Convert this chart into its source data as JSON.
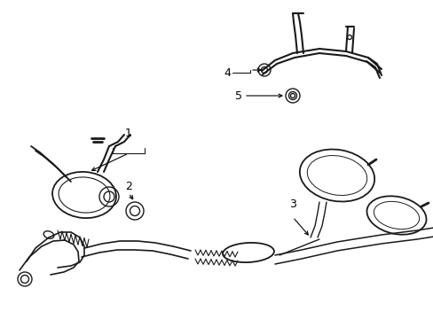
{
  "background_color": "#ffffff",
  "line_color": "#1a1a1a",
  "line_width": 1.0,
  "label_color": "#000000",
  "fig_width": 4.89,
  "fig_height": 3.6,
  "dpi": 100,
  "label_fontsize": 9,
  "arrow_color": "#000000"
}
